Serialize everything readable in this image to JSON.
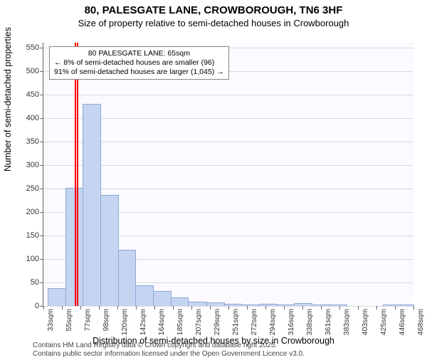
{
  "title": "80, PALESGATE LANE, CROWBOROUGH, TN6 3HF",
  "subtitle": "Size of property relative to semi-detached houses in Crowborough",
  "y_axis_label": "Number of semi-detached properties",
  "x_axis_label": "Distribution of semi-detached houses by size in Crowborough",
  "footer_line1": "Contains HM Land Registry data © Crown copyright and database right 2025.",
  "footer_line2": "Contains public sector information licensed under the Open Government Licence v3.0.",
  "chart": {
    "type": "histogram",
    "background_color": "#fafaff",
    "grid_color": "#d8d8e4",
    "axis_color": "#666666",
    "bar_color": "#c5d4f0",
    "bar_border_color": "#8ea8d8",
    "marker_color": "#ff0000",
    "ylim_max": 560,
    "yticks": [
      0,
      50,
      100,
      150,
      200,
      250,
      300,
      350,
      400,
      450,
      500,
      550
    ],
    "xticks": [
      "33sqm",
      "55sqm",
      "77sqm",
      "98sqm",
      "120sqm",
      "142sqm",
      "164sqm",
      "185sqm",
      "207sqm",
      "229sqm",
      "251sqm",
      "272sqm",
      "294sqm",
      "316sqm",
      "338sqm",
      "361sqm",
      "383sqm",
      "403sqm",
      "425sqm",
      "446sqm",
      "468sqm"
    ],
    "x_min": 25,
    "x_max": 480,
    "bars": [
      {
        "x0": 30,
        "x1": 52,
        "count": 36
      },
      {
        "x0": 52,
        "x1": 73,
        "count": 250
      },
      {
        "x0": 73,
        "x1": 95,
        "count": 428
      },
      {
        "x0": 95,
        "x1": 117,
        "count": 234
      },
      {
        "x0": 117,
        "x1": 138,
        "count": 118
      },
      {
        "x0": 138,
        "x1": 160,
        "count": 42
      },
      {
        "x0": 160,
        "x1": 182,
        "count": 30
      },
      {
        "x0": 182,
        "x1": 203,
        "count": 17
      },
      {
        "x0": 203,
        "x1": 225,
        "count": 8
      },
      {
        "x0": 225,
        "x1": 247,
        "count": 6
      },
      {
        "x0": 247,
        "x1": 268,
        "count": 3
      },
      {
        "x0": 268,
        "x1": 290,
        "count": 2
      },
      {
        "x0": 290,
        "x1": 312,
        "count": 3
      },
      {
        "x0": 312,
        "x1": 333,
        "count": 2
      },
      {
        "x0": 333,
        "x1": 355,
        "count": 4
      },
      {
        "x0": 355,
        "x1": 377,
        "count": 1
      },
      {
        "x0": 377,
        "x1": 398,
        "count": 1
      },
      {
        "x0": 398,
        "x1": 420,
        "count": 0
      },
      {
        "x0": 420,
        "x1": 442,
        "count": 0
      },
      {
        "x0": 442,
        "x1": 463,
        "count": 1
      },
      {
        "x0": 463,
        "x1": 480,
        "count": 1
      }
    ],
    "marker_value": 65
  },
  "annotation": {
    "line1": "80 PALESGATE LANE: 65sqm",
    "line2": "← 8% of semi-detached houses are smaller (96)",
    "line3": "91% of semi-detached houses are larger (1,045) →"
  }
}
